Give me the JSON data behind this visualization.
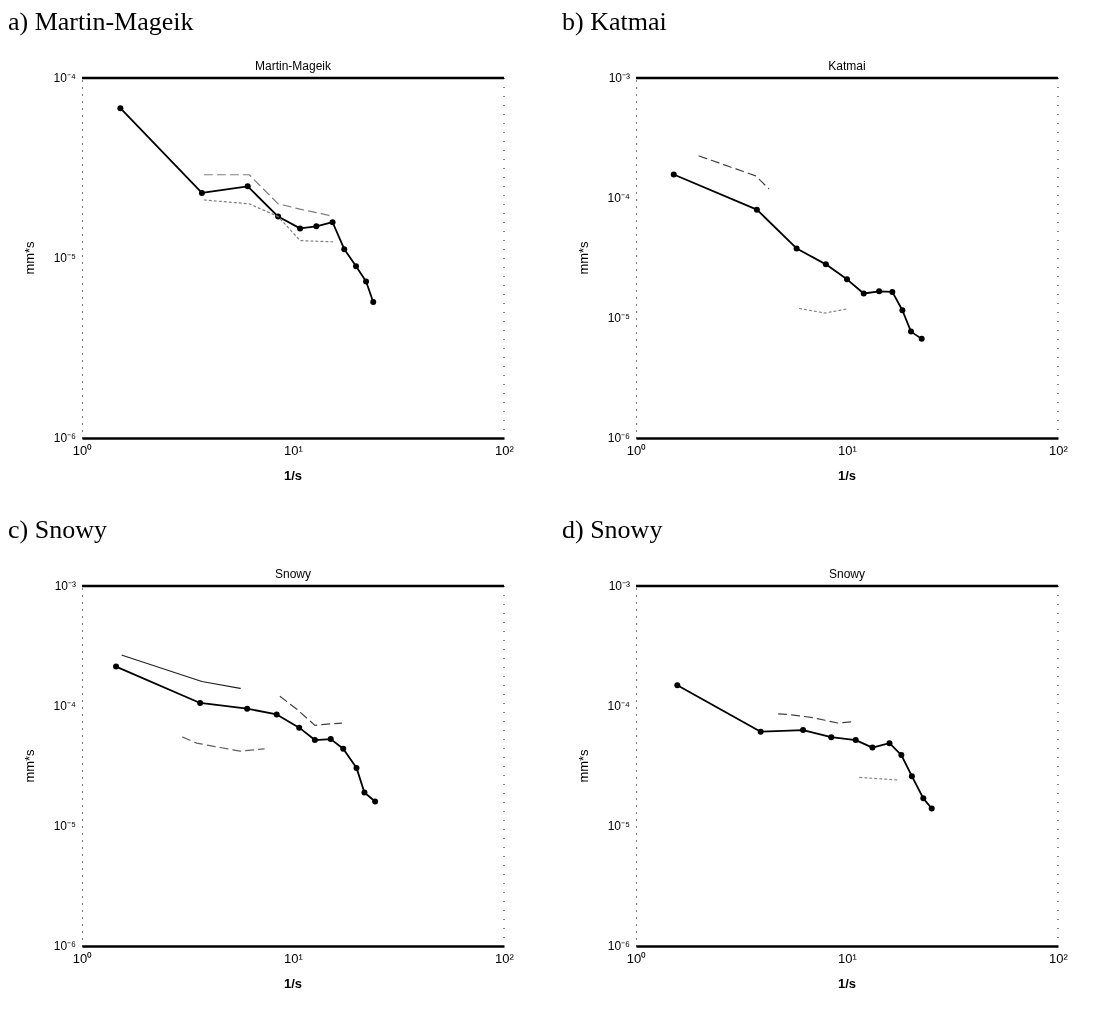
{
  "chart_data": [
    {
      "type": "line",
      "title": "a) Martin-Mageik",
      "subtitle": "Martin-Mageik",
      "xlabel": "1/s",
      "ylabel": "mm*s",
      "log": "xy",
      "grid": false,
      "xlim": [
        1,
        100
      ],
      "xticks": [
        {
          "value": 1,
          "label": "10⁰"
        },
        {
          "value": 10,
          "label": "10¹"
        },
        {
          "value": 100,
          "label": "10²"
        }
      ],
      "ylim": [
        1e-06,
        0.0001
      ],
      "yticks": [
        {
          "value": 1e-06,
          "label": "10⁻⁶"
        },
        {
          "value": 1e-05,
          "label": "10⁻⁵"
        },
        {
          "value": 0.0001,
          "label": "10⁻⁴"
        }
      ],
      "series": [
        {
          "color": "#000000",
          "marker": "circle",
          "line_style": "solid",
          "x": [
            1.52,
            3.7,
            6.1,
            8.5,
            10.8,
            12.9,
            15.4,
            17.5,
            19.9,
            22.2,
            24.0
          ],
          "values": [
            6.8e-05,
            2.3e-05,
            2.5e-05,
            1.7e-05,
            1.46e-05,
            1.5e-05,
            1.58e-05,
            1.12e-05,
            9e-06,
            7.4e-06,
            5.7e-06
          ]
        },
        {
          "color": "#808080",
          "marker": "none",
          "line_style": "dashed",
          "x": [
            3.8,
            6.2,
            8.5,
            10.8,
            15.4
          ],
          "values": [
            2.9e-05,
            2.9e-05,
            2e-05,
            1.87e-05,
            1.71e-05
          ]
        },
        {
          "color": "#808080",
          "marker": "none",
          "line_style": "dotted",
          "x": [
            3.8,
            6.2,
            8.5,
            10.8,
            15.4
          ],
          "values": [
            2.1e-05,
            2e-05,
            1.7e-05,
            1.25e-05,
            1.23e-05
          ]
        }
      ]
    },
    {
      "type": "line",
      "title": "b) Katmai",
      "subtitle": "Katmai",
      "xlabel": "1/s",
      "ylabel": "mm*s",
      "log": "xy",
      "grid": false,
      "xlim": [
        1,
        100
      ],
      "xticks": [
        {
          "value": 1,
          "label": "10⁰"
        },
        {
          "value": 10,
          "label": "10¹"
        },
        {
          "value": 100,
          "label": "10²"
        }
      ],
      "ylim": [
        1e-06,
        0.001
      ],
      "yticks": [
        {
          "value": 1e-06,
          "label": "10⁻⁶"
        },
        {
          "value": 1e-05,
          "label": "10⁻⁵"
        },
        {
          "value": 0.0001,
          "label": "10⁻⁴"
        },
        {
          "value": 0.001,
          "label": "10⁻³"
        }
      ],
      "series": [
        {
          "color": "#000000",
          "marker": "circle",
          "line_style": "solid",
          "x": [
            1.51,
            3.74,
            5.77,
            7.94,
            10,
            12,
            14.2,
            16.4,
            18.3,
            20.1,
            22.6
          ],
          "values": [
            0.000157,
            8e-05,
            3.8e-05,
            2.8e-05,
            2.1e-05,
            1.6e-05,
            1.67e-05,
            1.65e-05,
            1.16e-05,
            7.7e-06,
            6.7e-06
          ]
        },
        {
          "color": "#404040",
          "marker": "none",
          "line_style": "dashed",
          "x": [
            1.99,
            3.69,
            4.25
          ],
          "values": [
            0.000224,
            0.000153,
            0.00012
          ]
        },
        {
          "color": "#808080",
          "marker": "none",
          "line_style": "dotted",
          "x": [
            5.96,
            7.87,
            10
          ],
          "values": [
            1.2e-05,
            1.1e-05,
            1.19e-05
          ]
        }
      ]
    },
    {
      "type": "line",
      "title": "c) Snowy",
      "subtitle": "Snowy",
      "xlabel": "1/s",
      "ylabel": "mm*s",
      "log": "xy",
      "grid": false,
      "xlim": [
        1,
        100
      ],
      "xticks": [
        {
          "value": 1,
          "label": "10⁰"
        },
        {
          "value": 10,
          "label": "10¹"
        },
        {
          "value": 100,
          "label": "10²"
        }
      ],
      "ylim": [
        1e-06,
        0.001
      ],
      "yticks": [
        {
          "value": 1e-06,
          "label": "10⁻⁶"
        },
        {
          "value": 1e-05,
          "label": "10⁻⁵"
        },
        {
          "value": 0.0001,
          "label": "10⁻⁴"
        },
        {
          "value": 0.001,
          "label": "10⁻³"
        }
      ],
      "series": [
        {
          "color": "#000000",
          "marker": "circle",
          "line_style": "solid",
          "x": [
            1.45,
            3.63,
            6.06,
            8.37,
            10.7,
            12.7,
            15.1,
            17.3,
            20.0,
            21.8,
            24.5
          ],
          "values": [
            0.000213,
            0.000106,
            9.5e-05,
            8.5e-05,
            6.6e-05,
            5.2e-05,
            5.3e-05,
            4.4e-05,
            3.05e-05,
            1.9e-05,
            1.6e-05
          ]
        },
        {
          "color": "#202020",
          "marker": "none",
          "line_style": "solid",
          "x": [
            1.55,
            3.7,
            5.62
          ],
          "values": [
            0.000265,
            0.00016,
            0.00014
          ]
        },
        {
          "color": "#404040",
          "marker": "none",
          "line_style": "dashed",
          "x": [
            8.7,
            10.5,
            12.7,
            15.1,
            17.0
          ],
          "values": [
            0.00012,
            9.3e-05,
            6.9e-05,
            7.1e-05,
            7.2e-05
          ]
        },
        {
          "color": "#606060",
          "marker": "none",
          "line_style": "dashed",
          "x": [
            3.0,
            3.5,
            5.62,
            7.3
          ],
          "values": [
            5.5e-05,
            4.9e-05,
            4.2e-05,
            4.4e-05
          ]
        }
      ]
    },
    {
      "type": "line",
      "title": "d) Snowy",
      "subtitle": "Snowy",
      "xlabel": "1/s",
      "ylabel": "mm*s",
      "log": "xy",
      "grid": false,
      "xlim": [
        1,
        100
      ],
      "xticks": [
        {
          "value": 1,
          "label": "10⁰"
        },
        {
          "value": 10,
          "label": "10¹"
        },
        {
          "value": 100,
          "label": "10²"
        }
      ],
      "ylim": [
        1e-06,
        0.001
      ],
      "yticks": [
        {
          "value": 1e-06,
          "label": "10⁻⁶"
        },
        {
          "value": 1e-05,
          "label": "10⁻⁵"
        },
        {
          "value": 0.0001,
          "label": "10⁻⁴"
        },
        {
          "value": 0.001,
          "label": "10⁻³"
        }
      ],
      "series": [
        {
          "color": "#000000",
          "marker": "circle",
          "line_style": "solid",
          "x": [
            1.57,
            3.9,
            6.19,
            8.42,
            11.0,
            13.2,
            15.9,
            18.1,
            20.3,
            23.0,
            25.2
          ],
          "values": [
            0.000149,
            6.1e-05,
            6.3e-05,
            5.5e-05,
            5.2e-05,
            4.5e-05,
            4.9e-05,
            3.9e-05,
            2.6e-05,
            1.7e-05,
            1.4e-05
          ]
        },
        {
          "color": "#404040",
          "marker": "none",
          "line_style": "dashed",
          "x": [
            4.74,
            5.3,
            6.9,
            9.1,
            10.7
          ],
          "values": [
            8.6e-05,
            8.5e-05,
            8e-05,
            7.2e-05,
            7.4e-05
          ]
        },
        {
          "color": "#808080",
          "marker": "none",
          "line_style": "dotted",
          "x": [
            11.5,
            17.3
          ],
          "values": [
            2.54e-05,
            2.42e-05
          ]
        }
      ]
    }
  ]
}
